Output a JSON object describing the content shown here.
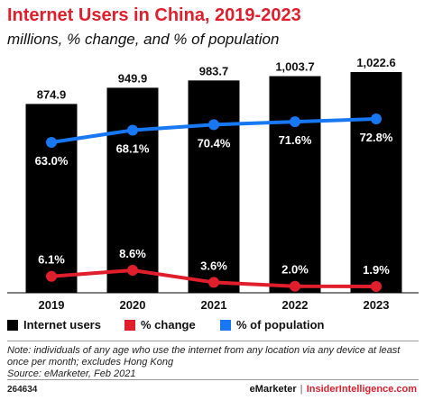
{
  "title": "Internet Users in China, 2019-2023",
  "subtitle": "millions, % change, and % of population",
  "chart_data": {
    "type": "bar",
    "categories": [
      "2019",
      "2020",
      "2021",
      "2022",
      "2023"
    ],
    "series": [
      {
        "name": "Internet users",
        "type": "bar",
        "color": "#000000",
        "values": [
          874.9,
          949.9,
          983.7,
          1003.7,
          1022.6
        ],
        "labels": [
          "874.9",
          "949.9",
          "983.7",
          "1,003.7",
          "1,022.6"
        ]
      },
      {
        "name": "% change",
        "type": "line",
        "color": "#e01e2c",
        "values": [
          6.1,
          8.6,
          3.6,
          2.0,
          1.9
        ],
        "labels": [
          "6.1%",
          "8.6%",
          "3.6%",
          "2.0%",
          "1.9%"
        ]
      },
      {
        "name": "% of population",
        "type": "line",
        "color": "#1877f2",
        "values": [
          63.0,
          68.1,
          70.4,
          71.6,
          72.8
        ],
        "labels": [
          "63.0%",
          "68.1%",
          "70.4%",
          "71.6%",
          "72.8%"
        ]
      }
    ],
    "grid": false,
    "legend": "bottom"
  },
  "note": "Note: individuals of any age who use the internet from any location via any device at least once per month; excludes Hong Kong",
  "source": "Source: eMarketer, Feb 2021",
  "footer": {
    "id": "264634",
    "brand": "eMarketer",
    "separator": "|",
    "brand2": "InsiderIntelligence.com"
  }
}
